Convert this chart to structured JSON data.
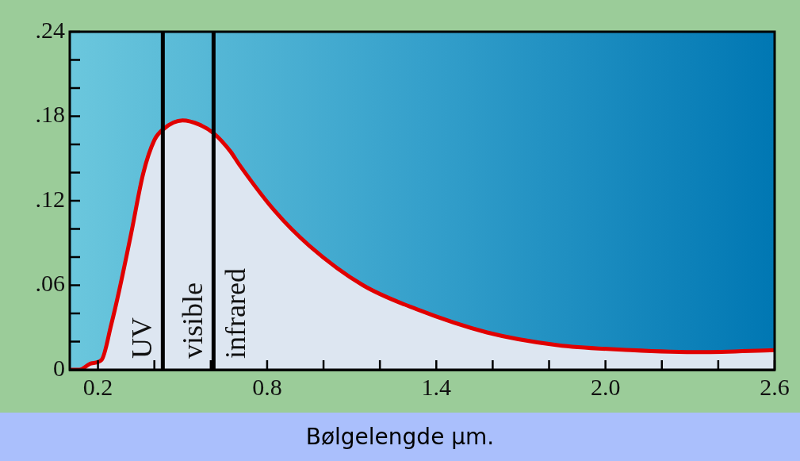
{
  "chart_data": {
    "type": "area",
    "xlabel": "Bølgelengde μm.",
    "x": [
      0.1,
      0.134,
      0.176,
      0.213,
      0.247,
      0.275,
      0.318,
      0.36,
      0.4,
      0.433,
      0.5,
      0.56,
      0.61,
      0.67,
      0.7,
      0.826,
      0.95,
      1.14,
      1.33,
      1.58,
      1.83,
      2.09,
      2.34,
      2.6
    ],
    "series": [
      {
        "color": "#e00000",
        "values": [
          0,
          0,
          0.0045,
          0.007,
          0.032,
          0.056,
          0.097,
          0.139,
          0.163,
          0.171,
          0.177,
          0.174,
          0.168,
          0.155,
          0.146,
          0.113,
          0.088,
          0.06,
          0.043,
          0.0265,
          0.0175,
          0.014,
          0.0125,
          0.014
        ]
      }
    ],
    "xlim": [
      0.1,
      2.6
    ],
    "xticks": [
      0.2,
      {
        "value": 0.4,
        "label": null
      },
      {
        "value": 0.6,
        "label": null
      },
      0.8,
      {
        "value": 1.0,
        "label": null
      },
      {
        "value": 1.2,
        "label": null
      },
      1.4,
      {
        "value": 1.6,
        "label": null
      },
      {
        "value": 1.8,
        "label": null
      },
      {
        "value": 2.0,
        "label": "2.0"
      },
      {
        "value": 2.2,
        "label": null
      },
      {
        "value": 2.4,
        "label": null
      },
      2.6
    ],
    "ylim": [
      0,
      0.24
    ],
    "yticks": [
      0,
      {
        "value": 0.02,
        "label": null
      },
      {
        "value": 0.04,
        "label": null
      },
      {
        "value": 0.06,
        "label": ".06"
      },
      {
        "value": 0.08,
        "label": null
      },
      {
        "value": 0.1,
        "label": null
      },
      {
        "value": 0.12,
        "label": ".12"
      },
      {
        "value": 0.14,
        "label": null
      },
      {
        "value": 0.16,
        "label": null
      },
      {
        "value": 0.18,
        "label": ".18"
      },
      {
        "value": 0.2,
        "label": null
      },
      {
        "value": 0.22,
        "label": null
      },
      {
        "value": 0.24,
        "label": ".24"
      }
    ],
    "ref_lines": [
      {
        "axis": "x",
        "value": 0.43,
        "color": "#000000"
      },
      {
        "axis": "x",
        "value": 0.61,
        "color": "#000000"
      }
    ],
    "annotations": [
      "UV",
      "visible",
      "infrared"
    ],
    "legend": false
  }
}
